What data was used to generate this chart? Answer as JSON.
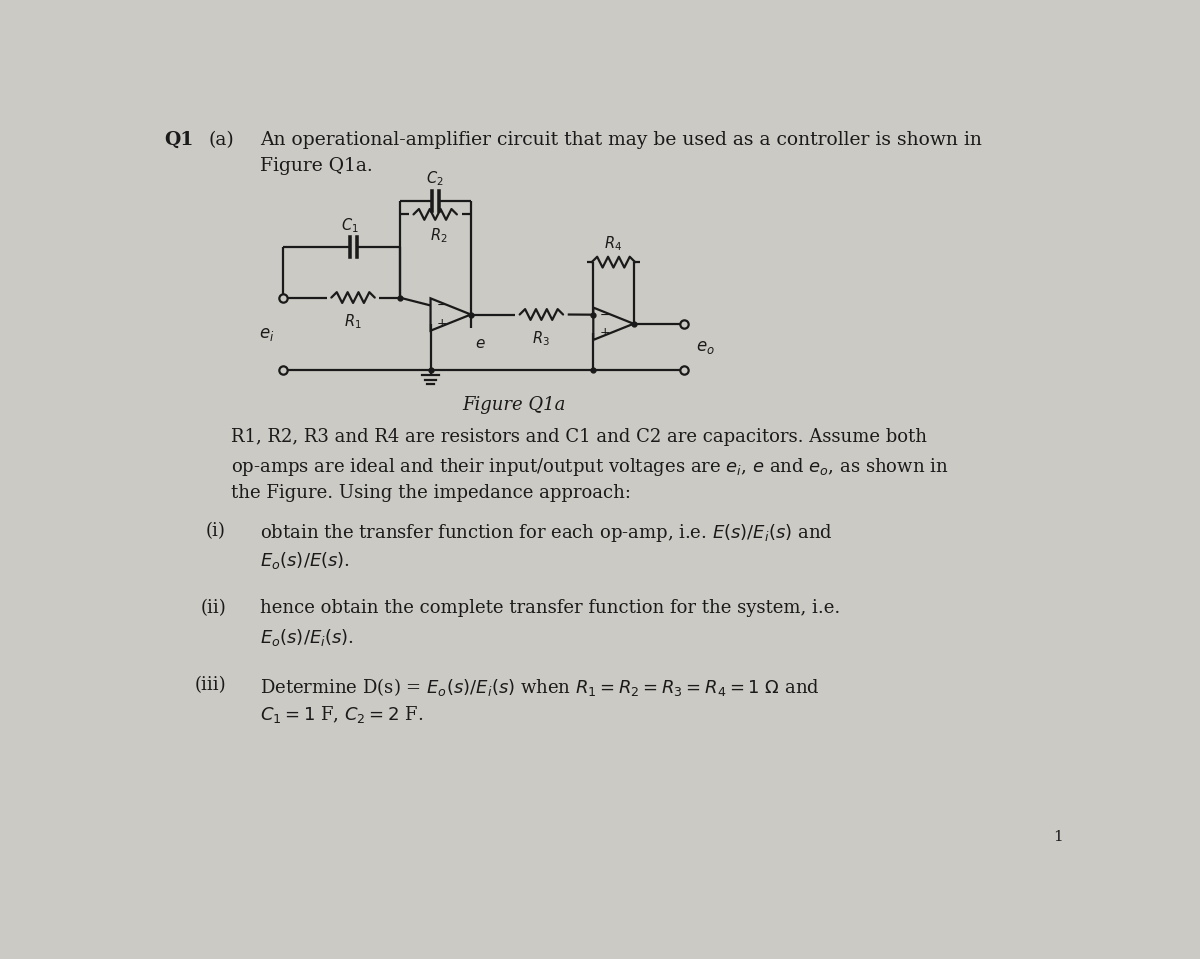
{
  "bg_color": "#cccac4",
  "text_color": "#1a1a1a",
  "line_color": "#1a1a1a",
  "lw": 1.6,
  "fig_width": 12.0,
  "fig_height": 9.59,
  "title_q": "Q1",
  "title_a": "(a)",
  "title_line1": "An operational-amplifier circuit that may be used as a controller is shown in",
  "title_line2": "Figure Q1a.",
  "figure_caption": "Figure Q1a",
  "body_line1": "R1, R2, R3 and R4 are resistors and C1 and C2 are capacitors. Assume both",
  "body_line2": "op-amps are ideal and their input/output voltages are $e_i$, $e$ and $e_o$, as shown in",
  "body_line3": "the Figure. Using the impedance approach:",
  "i_label": "(i)",
  "i_line1": "obtain the transfer function for each op-amp, i.e. $E(s)/E_i(s)$ and",
  "i_line2": "$E_o(s)/E(s)$.",
  "ii_label": "(ii)",
  "ii_line1": "hence obtain the complete transfer function for the system, i.e.",
  "ii_line2": "$E_o(s)/E_i(s)$.",
  "iii_label": "(iii)",
  "iii_line1": "Determine D(s) = $E_o(s)/E_i(s)$ when $R_1 = R_2 = R_3 = R_4 = 1\\ \\Omega$ and",
  "iii_line2": "$C_1 = 1$ F, $C_2 = 2$ F.",
  "page_num": "1"
}
